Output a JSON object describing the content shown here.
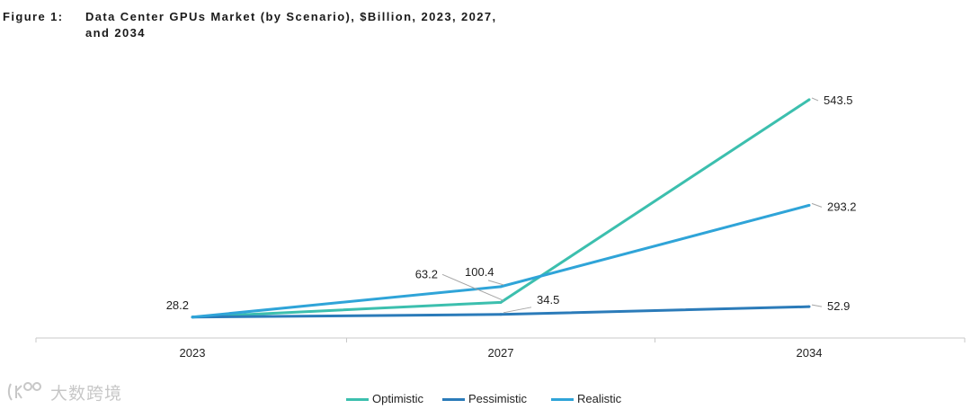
{
  "figure": {
    "label": "Figure 1:",
    "title": "Data Center GPUs Market (by Scenario), $Billion, 2023, 2027, and 2034"
  },
  "watermark": {
    "text": "大数跨境"
  },
  "chart_data": {
    "type": "line",
    "title": "Data Center GPUs Market (by Scenario), $Billion, 2023, 2027, and 2034",
    "xlabel": "",
    "ylabel": "",
    "categories": [
      "2023",
      "2027",
      "2034"
    ],
    "ylim": [
      0,
      620
    ],
    "grid": false,
    "legend_position": "bottom",
    "series": [
      {
        "name": "Optimistic",
        "color": "#3cbfae",
        "values": [
          28.2,
          63.2,
          543.5
        ],
        "labels": [
          "",
          "63.2",
          "543.5"
        ]
      },
      {
        "name": "Pessimistic",
        "color": "#2b7bb9",
        "values": [
          28.2,
          34.5,
          52.9
        ],
        "labels": [
          "",
          "34.5",
          "52.9"
        ]
      },
      {
        "name": "Realistic",
        "color": "#2fa4d8",
        "values": [
          28.2,
          100.4,
          293.2
        ],
        "labels": [
          "28.2",
          "100.4",
          "293.2"
        ]
      }
    ]
  }
}
